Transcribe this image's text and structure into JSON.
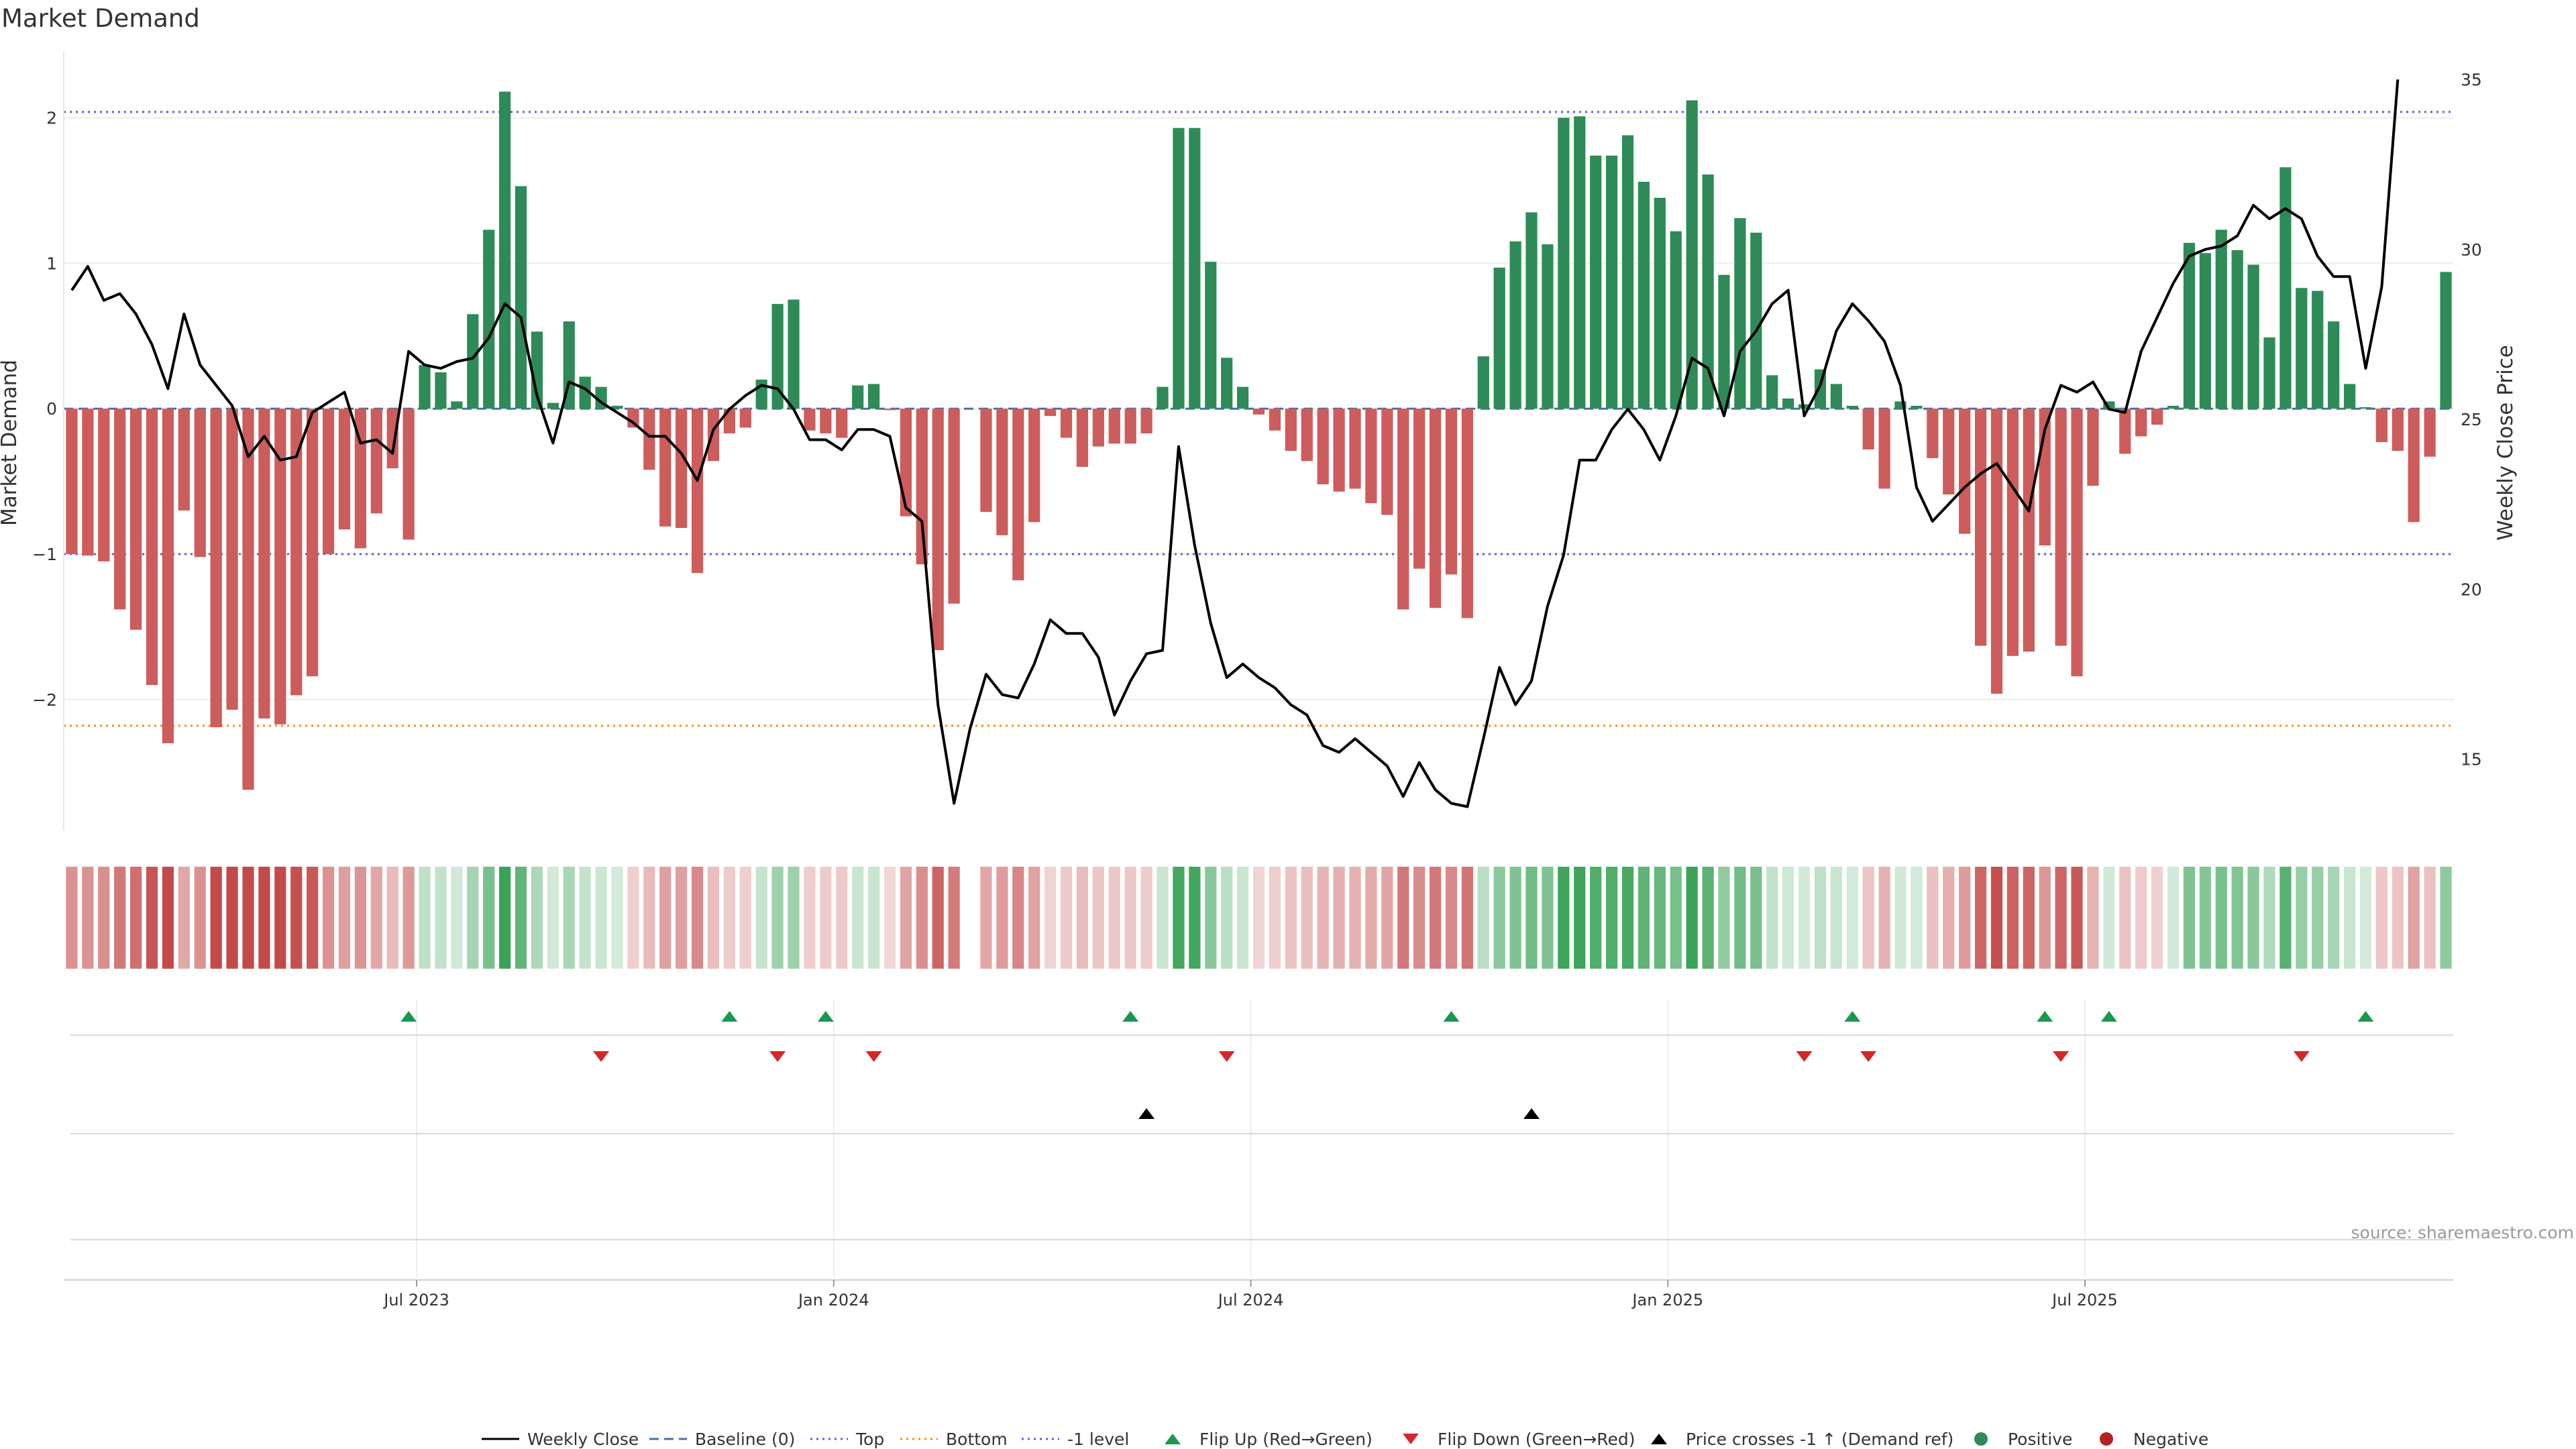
{
  "title": "Market Demand",
  "ylabel_left": "Market Demand",
  "ylabel_right": "Weekly Close Price",
  "source": "source: sharemaestro.com",
  "colors": {
    "positive": "#2e8b57",
    "negative": "#cd5c5c",
    "line": "#000000",
    "level": "#6a5acd",
    "bottom": "#ff8c00",
    "flip_up": "#1a9850",
    "flip_down": "#d62728"
  },
  "legend": [
    {
      "label": "Weekly Close",
      "kind": "line",
      "color": "#000000"
    },
    {
      "label": "Baseline (0)",
      "kind": "dash",
      "color": "#4a6fa5"
    },
    {
      "label": "Top",
      "kind": "dot",
      "color": "#6a5acd"
    },
    {
      "label": "Bottom",
      "kind": "dot",
      "color": "#ff8c00"
    },
    {
      "label": "-1 level",
      "kind": "dot",
      "color": "#6a5acd"
    },
    {
      "label": "Flip Up (Red→Green)",
      "kind": "tri-up",
      "color": "#1a9850"
    },
    {
      "label": "Flip Down (Green→Red)",
      "kind": "tri-down",
      "color": "#d62728"
    },
    {
      "label": "Price crosses -1 ↑ (Demand ref)",
      "kind": "tri-up",
      "color": "#000000"
    },
    {
      "label": "Positive",
      "kind": "circle",
      "color": "#2e8b57"
    },
    {
      "label": "Negative",
      "kind": "circle",
      "color": "#b22222"
    }
  ],
  "chart_data": {
    "type": "bar",
    "demand_ylim": [
      -2.9,
      2.45
    ],
    "demand_yticks": [
      -2,
      -1,
      0,
      1,
      2
    ],
    "demand_ytick_labels": [
      "−2",
      "−1",
      "0",
      "1",
      "2"
    ],
    "price_ylim": [
      12.9,
      35.8
    ],
    "price_yticks": [
      15,
      20,
      25,
      30,
      35
    ],
    "price_ytick_labels": [
      "15",
      "20",
      "25",
      "30",
      "35"
    ],
    "top_level": 2.04,
    "bottom_level": -2.18,
    "minus_one_level": -1.0,
    "x_ticks": [
      {
        "label": "Jul 2023",
        "week": 22
      },
      {
        "label": "Jan 2024",
        "week": 48
      },
      {
        "label": "Jul 2024",
        "week": 74
      },
      {
        "label": "Jan 2025",
        "week": 100
      },
      {
        "label": "Jul 2025",
        "week": 126
      }
    ],
    "demand": [
      -1.0,
      -1.01,
      -1.05,
      -1.38,
      -1.52,
      -1.9,
      -2.3,
      -0.7,
      -1.02,
      -2.19,
      -2.07,
      -2.62,
      -2.13,
      -2.17,
      -1.97,
      -1.84,
      -1.0,
      -0.83,
      -0.96,
      -0.72,
      -0.41,
      -0.9,
      0.3,
      0.25,
      0.05,
      0.65,
      1.23,
      2.18,
      1.53,
      0.53,
      0.04,
      0.6,
      0.22,
      0.15,
      0.02,
      -0.13,
      -0.42,
      -0.81,
      -0.82,
      -1.13,
      -0.36,
      -0.17,
      -0.13,
      0.2,
      0.72,
      0.75,
      -0.15,
      -0.17,
      -0.2,
      0.16,
      0.17,
      -0.01,
      -0.74,
      -1.07,
      -1.66,
      -1.34,
      0,
      -0.71,
      -0.87,
      -1.18,
      -0.78,
      -0.05,
      -0.2,
      -0.4,
      -0.26,
      -0.24,
      -0.24,
      -0.17,
      0.15,
      1.93,
      1.93,
      1.01,
      0.35,
      0.15,
      -0.04,
      -0.15,
      -0.29,
      -0.36,
      -0.52,
      -0.57,
      -0.55,
      -0.65,
      -0.73,
      -1.38,
      -1.1,
      -1.37,
      -1.14,
      -1.44,
      0.36,
      0.97,
      1.15,
      1.35,
      1.13,
      2.0,
      2.01,
      1.74,
      1.74,
      1.88,
      1.56,
      1.45,
      1.22,
      2.12,
      1.61,
      0.92,
      1.31,
      1.21,
      0.23,
      0.07,
      0.03,
      0.27,
      0.17,
      0.02,
      -0.28,
      -0.55,
      0.05,
      0.02,
      -0.34,
      -0.59,
      -0.86,
      -1.63,
      -1.96,
      -1.7,
      -1.67,
      -0.94,
      -1.63,
      -1.84,
      -0.53,
      0.05,
      -0.31,
      -0.19,
      -0.11,
      0.02,
      1.14,
      1.07,
      1.23,
      1.09,
      0.99,
      0.49,
      1.66,
      0.83,
      0.81,
      0.6,
      0.17,
      0.01,
      -0.23,
      -0.29,
      -0.78,
      -0.33,
      0.94
    ],
    "price": [
      28.8,
      29.5,
      28.5,
      28.7,
      28.1,
      27.2,
      25.9,
      28.1,
      26.6,
      26.0,
      25.4,
      23.9,
      24.5,
      23.8,
      23.9,
      25.2,
      25.5,
      25.8,
      24.3,
      24.4,
      24.0,
      27.0,
      26.6,
      26.5,
      26.7,
      26.8,
      27.4,
      28.4,
      28.0,
      25.7,
      24.3,
      26.1,
      25.9,
      25.5,
      25.2,
      24.9,
      24.5,
      24.5,
      24.0,
      23.2,
      24.7,
      25.3,
      25.7,
      26.0,
      25.9,
      25.3,
      24.4,
      24.4,
      24.1,
      24.7,
      24.7,
      24.5,
      22.4,
      22.0,
      16.6,
      13.7,
      15.9,
      17.5,
      16.9,
      16.8,
      17.8,
      19.1,
      18.7,
      18.7,
      18.0,
      16.3,
      17.3,
      18.1,
      18.2,
      24.2,
      21.3,
      19.0,
      17.4,
      17.8,
      17.4,
      17.1,
      16.6,
      16.3,
      15.4,
      15.2,
      15.6,
      15.2,
      14.8,
      13.9,
      14.9,
      14.1,
      13.7,
      13.6,
      15.6,
      17.7,
      16.6,
      17.3,
      19.5,
      21.0,
      23.8,
      23.8,
      24.7,
      25.3,
      24.7,
      23.8,
      25.1,
      26.8,
      26.5,
      25.1,
      27.0,
      27.6,
      28.4,
      28.8,
      25.1,
      26.0,
      27.6,
      28.4,
      27.9,
      27.3,
      26.0,
      23.0,
      22.0,
      22.5,
      23.0,
      23.4,
      23.7,
      23.0,
      22.3,
      24.7,
      26.0,
      25.8,
      26.1,
      25.3,
      25.2,
      27.0,
      28.0,
      29.0,
      29.8,
      30.0,
      30.1,
      30.4,
      31.3,
      30.9,
      31.2,
      30.9,
      29.8,
      29.2,
      29.2,
      26.5,
      28.9,
      35.0
    ],
    "flip_up_weeks": [
      21,
      41,
      47,
      66,
      86,
      111,
      123,
      127,
      143
    ],
    "flip_down_weeks": [
      33,
      44,
      50,
      72,
      108,
      112,
      124,
      139
    ],
    "price_cross_weeks": [
      67,
      91
    ]
  }
}
